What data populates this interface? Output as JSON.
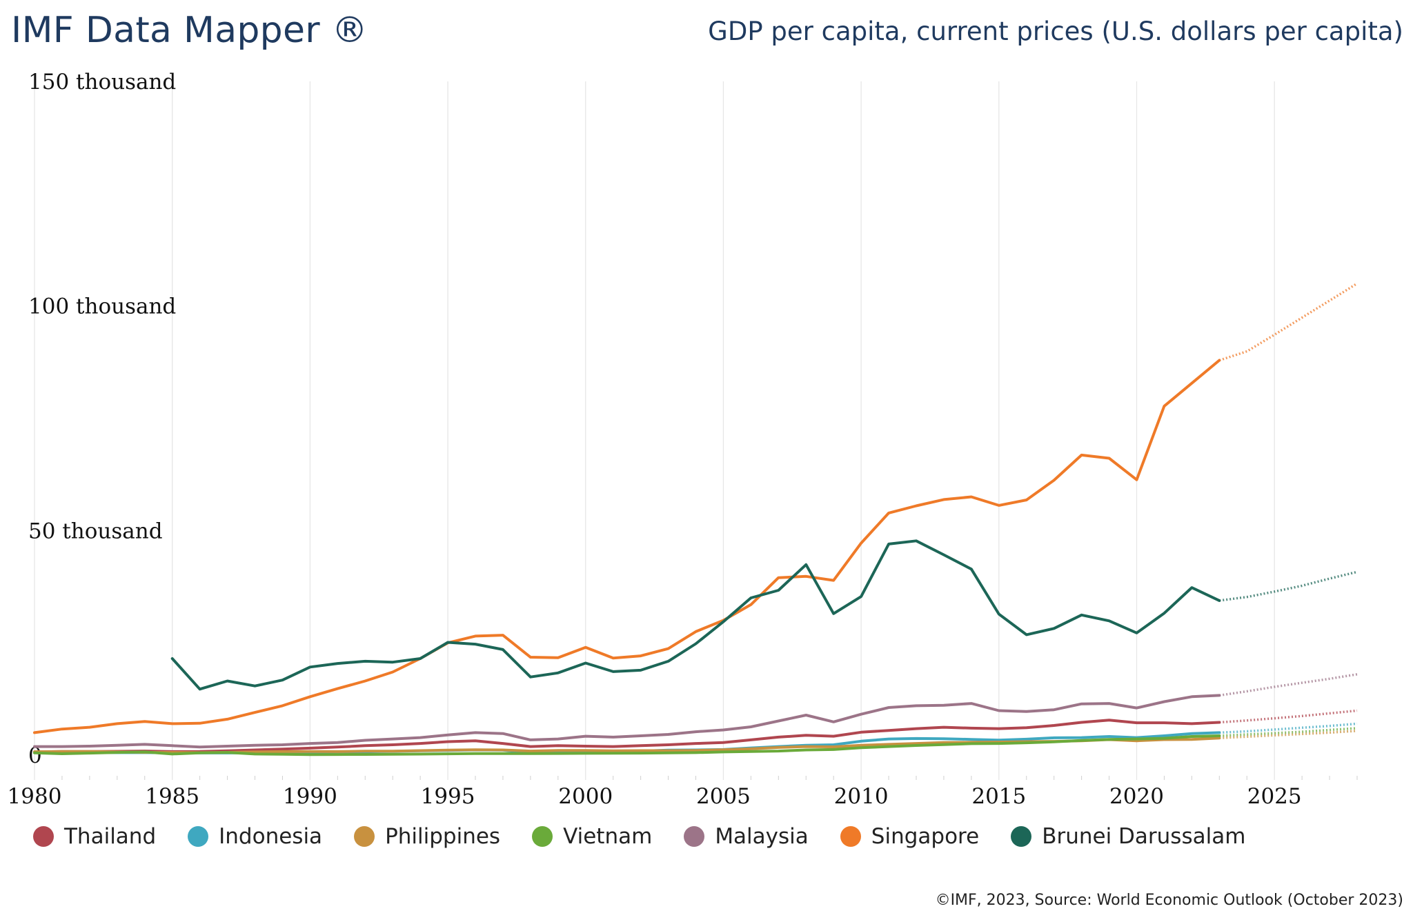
{
  "header": {
    "brand": "IMF Data Mapper ®",
    "title": "GDP per capita, current prices (U.S. dollars per capita)"
  },
  "footer": {
    "source": "©IMF, 2023, Source: World Economic Outlook (October 2023)"
  },
  "chart_data": {
    "type": "line",
    "title": "GDP per capita, current prices (U.S. dollars per capita)",
    "xlabel": "",
    "ylabel": "",
    "xlim": [
      1980,
      2028
    ],
    "ylim": [
      0,
      150000
    ],
    "grid": "vertical",
    "last_actual_year": 2023,
    "projection_style": "dotted",
    "x_ticks": [
      1980,
      1985,
      1990,
      1995,
      2000,
      2005,
      2010,
      2015,
      2020,
      2025
    ],
    "x_tick_labels": [
      "1980",
      "1985",
      "1990",
      "1995",
      "2000",
      "2005",
      "2010",
      "2015",
      "2020",
      "2025"
    ],
    "y_ticks": [
      0,
      50000,
      100000,
      150000
    ],
    "y_tick_labels": [
      "0",
      "50 thousand",
      "100 thousand",
      "150 thousand"
    ],
    "legend_position": "bottom",
    "series": [
      {
        "name": "Thailand",
        "color": "#b0464f",
        "start_year": 1980,
        "values": [
          700,
          800,
          820,
          850,
          900,
          780,
          800,
          950,
          1150,
          1350,
          1550,
          1800,
          2100,
          2300,
          2600,
          3000,
          3200,
          2600,
          1900,
          2100,
          2000,
          1900,
          2100,
          2300,
          2600,
          2800,
          3400,
          4000,
          4400,
          4200,
          5100,
          5500,
          5900,
          6200,
          6000,
          5900,
          6100,
          6600,
          7300,
          7800,
          7200,
          7200,
          7000,
          7300,
          7700,
          8200,
          8700,
          9300,
          9900
        ]
      },
      {
        "name": "Indonesia",
        "color": "#3fa8c0",
        "start_year": 1980,
        "values": [
          550,
          600,
          620,
          550,
          560,
          540,
          480,
          470,
          520,
          580,
          640,
          700,
          750,
          850,
          950,
          1050,
          1150,
          1100,
          500,
          700,
          800,
          780,
          900,
          1100,
          1150,
          1250,
          1600,
          1900,
          2200,
          2300,
          3100,
          3600,
          3700,
          3650,
          3500,
          3350,
          3550,
          3850,
          3900,
          4150,
          3900,
          4300,
          4800,
          5000,
          5300,
          5700,
          6100,
          6500,
          7000
        ]
      },
      {
        "name": "Philippines",
        "color": "#c8913f",
        "start_year": 1980,
        "values": [
          750,
          800,
          800,
          700,
          620,
          600,
          560,
          620,
          700,
          780,
          800,
          780,
          880,
          880,
          1000,
          1100,
          1200,
          1150,
          900,
          1050,
          1050,
          950,
          1000,
          1000,
          1050,
          1200,
          1400,
          1700,
          1900,
          1850,
          2200,
          2400,
          2600,
          2800,
          2850,
          2900,
          3000,
          3050,
          3200,
          3450,
          3200,
          3450,
          3500,
          3800,
          4100,
          4400,
          4700,
          5000,
          5400
        ]
      },
      {
        "name": "Vietnam",
        "color": "#6aaa3a",
        "start_year": 1980,
        "values": [
          500,
          300,
          450,
          600,
          700,
          250,
          500,
          600,
          250,
          200,
          100,
          140,
          150,
          190,
          230,
          290,
          340,
          360,
          360,
          370,
          400,
          420,
          440,
          490,
          560,
          700,
          800,
          900,
          1150,
          1250,
          1650,
          1900,
          2150,
          2350,
          2550,
          2600,
          2750,
          2950,
          3250,
          3500,
          3600,
          3750,
          4150,
          4300,
          4600,
          4900,
          5200,
          5600,
          6000
        ]
      },
      {
        "name": "Malaysia",
        "color": "#9c7488",
        "start_year": 1980,
        "values": [
          1900,
          1900,
          2000,
          2200,
          2400,
          2100,
          1800,
          2000,
          2200,
          2300,
          2600,
          2800,
          3300,
          3600,
          3900,
          4500,
          5000,
          4800,
          3400,
          3600,
          4200,
          4000,
          4300,
          4600,
          5200,
          5600,
          6300,
          7600,
          8900,
          7400,
          9100,
          10600,
          11000,
          11100,
          11500,
          9900,
          9700,
          10100,
          11400,
          11500,
          10500,
          11900,
          13000,
          13300,
          14200,
          15200,
          16100,
          17000,
          18000
        ]
      },
      {
        "name": "Singapore",
        "color": "#ef7a28",
        "start_year": 1980,
        "values": [
          5000,
          5800,
          6200,
          7000,
          7500,
          7000,
          7100,
          8000,
          9500,
          11000,
          13000,
          14800,
          16500,
          18500,
          21500,
          25000,
          26500,
          26700,
          21800,
          21700,
          24000,
          21600,
          22100,
          23700,
          27500,
          30000,
          33500,
          39500,
          39800,
          38900,
          47200,
          53900,
          55500,
          56900,
          57500,
          55600,
          56800,
          61200,
          66800,
          66100,
          61300,
          77700,
          82800,
          87900,
          89900,
          93600,
          97400,
          101200,
          105000
        ]
      },
      {
        "name": "Brunei Darussalam",
        "color": "#1c6657",
        "start_year": 1985,
        "values": [
          21500,
          14700,
          16500,
          15400,
          16700,
          19600,
          20400,
          20900,
          20700,
          21500,
          25100,
          24700,
          23500,
          17400,
          18300,
          20500,
          18600,
          18900,
          20900,
          24800,
          29700,
          35000,
          36700,
          42400,
          31500,
          35300,
          47000,
          47700,
          44600,
          41400,
          31400,
          26800,
          28200,
          31200,
          29900,
          27200,
          31600,
          37300,
          34400,
          35200,
          36400,
          37700,
          39300,
          40800
        ]
      }
    ]
  }
}
